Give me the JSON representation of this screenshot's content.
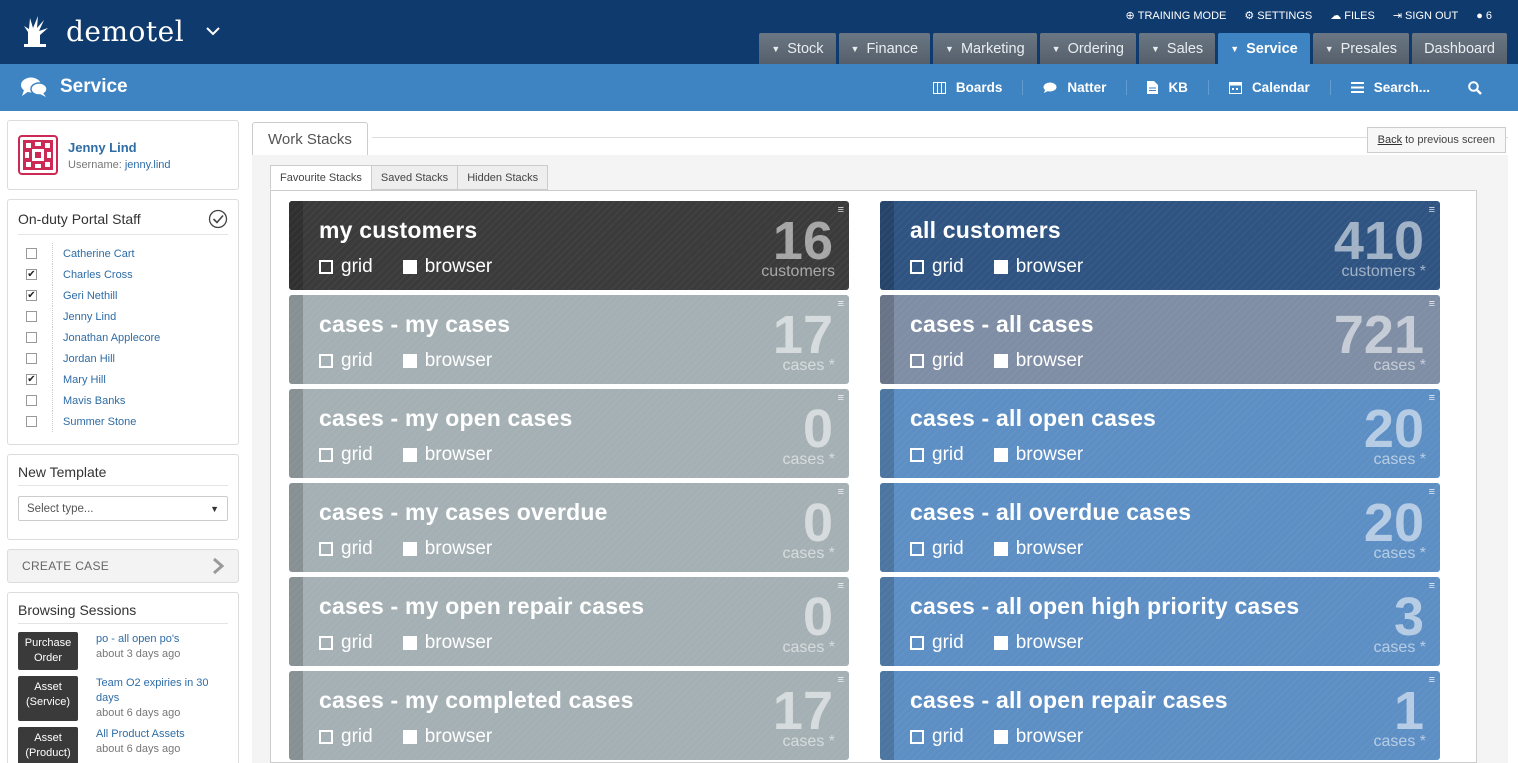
{
  "app": {
    "name": "demotel"
  },
  "utility": [
    {
      "label": "TRAINING MODE",
      "icon": "globe-icon"
    },
    {
      "label": "SETTINGS",
      "icon": "gear-icon"
    },
    {
      "label": "FILES",
      "icon": "cloud-icon"
    },
    {
      "label": "SIGN OUT",
      "icon": "sign-out-icon"
    },
    {
      "label": "6",
      "icon": "chat-icon"
    }
  ],
  "tabs": [
    "Stock",
    "Finance",
    "Marketing",
    "Ordering",
    "Sales",
    "Service",
    "Presales",
    "Dashboard"
  ],
  "active_tab": "Service",
  "section": {
    "title": "Service"
  },
  "subnav": [
    {
      "label": "Boards",
      "icon": "columns-icon"
    },
    {
      "label": "Natter",
      "icon": "speech-bubble-icon"
    },
    {
      "label": "KB",
      "icon": "document-icon"
    },
    {
      "label": "Calendar",
      "icon": "calendar-icon"
    },
    {
      "label": "Search...",
      "icon": "menu-icon"
    }
  ],
  "user": {
    "name": "Jenny Lind",
    "username_label": "Username:",
    "username": "jenny.lind"
  },
  "staff": {
    "title": "On-duty Portal Staff",
    "members": [
      {
        "name": "Catherine Cart",
        "checked": false
      },
      {
        "name": "Charles Cross",
        "checked": true
      },
      {
        "name": "Geri Nethill",
        "checked": true
      },
      {
        "name": "Jenny Lind",
        "checked": false
      },
      {
        "name": "Jonathan Applecore",
        "checked": false
      },
      {
        "name": "Jordan Hill",
        "checked": false
      },
      {
        "name": "Mary Hill",
        "checked": true
      },
      {
        "name": "Mavis Banks",
        "checked": false
      },
      {
        "name": "Summer Stone",
        "checked": false
      }
    ]
  },
  "template": {
    "title": "New Template",
    "select_value": "Select type..."
  },
  "create_case": {
    "label": "CREATE CASE"
  },
  "sessions": {
    "title": "Browsing Sessions",
    "items": [
      {
        "badge": "Purchase Order",
        "text": "po - all open po's",
        "ago": "about 3 days ago"
      },
      {
        "badge": "Asset (Service)",
        "text": "Team O2 expiries in 30 days",
        "ago": "about 6 days ago"
      },
      {
        "badge": "Asset (Product)",
        "text": "All Product Assets",
        "ago": "about 6 days ago"
      }
    ]
  },
  "workstacks": {
    "title": "Work Stacks",
    "back_link": "Back",
    "back_suffix": "to previous screen",
    "tabs": [
      "Favourite Stacks",
      "Saved Stacks",
      "Hidden Stacks"
    ],
    "active_tab": "Favourite Stacks",
    "option_grid": "grid",
    "option_browser": "browser",
    "menu_icon": "≡",
    "stacks": [
      {
        "title": "my customers",
        "count": "16",
        "unit": "customers",
        "theme": "dark"
      },
      {
        "title": "all customers",
        "count": "410",
        "unit": "customers *",
        "theme": "navy"
      },
      {
        "title": "cases - my cases",
        "count": "17",
        "unit": "cases *",
        "theme": "grey"
      },
      {
        "title": "cases - all cases",
        "count": "721",
        "unit": "cases *",
        "theme": "slate"
      },
      {
        "title": "cases - my open cases",
        "count": "0",
        "unit": "cases *",
        "theme": "grey"
      },
      {
        "title": "cases - all open cases",
        "count": "20",
        "unit": "cases *",
        "theme": "blue"
      },
      {
        "title": "cases - my cases overdue",
        "count": "0",
        "unit": "cases *",
        "theme": "grey"
      },
      {
        "title": "cases - all overdue cases",
        "count": "20",
        "unit": "cases *",
        "theme": "blue"
      },
      {
        "title": "cases - my open repair cases",
        "count": "0",
        "unit": "cases *",
        "theme": "grey"
      },
      {
        "title": "cases - all open high priority cases",
        "count": "3",
        "unit": "cases *",
        "theme": "blue"
      },
      {
        "title": "cases - my completed cases",
        "count": "17",
        "unit": "cases *",
        "theme": "grey"
      },
      {
        "title": "cases - all open repair cases",
        "count": "1",
        "unit": "cases *",
        "theme": "blue"
      }
    ]
  },
  "colors": {
    "topbar": "#0f3a6e",
    "subbar": "#3f84c2",
    "link": "#2e6ca6",
    "avatar": "#cc2a55"
  }
}
